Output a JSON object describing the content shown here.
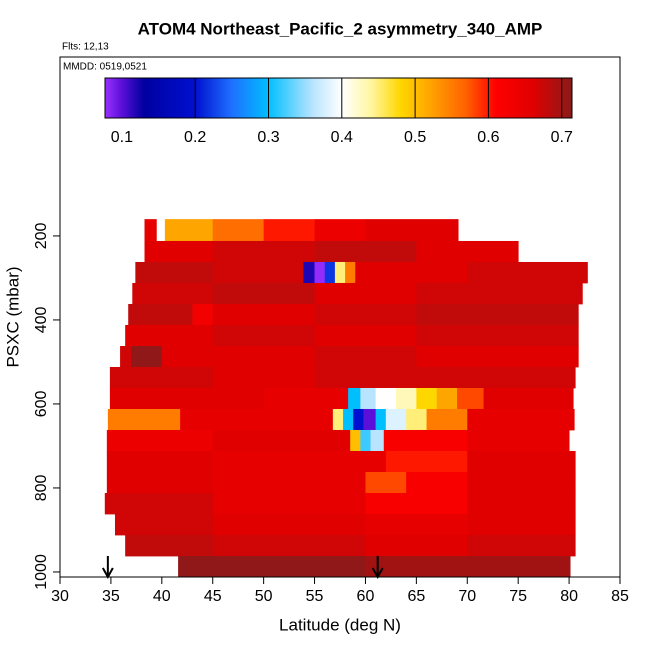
{
  "chart_data": {
    "type": "heatmap",
    "title": "ATOM4 Northeast_Pacific_2 asymmetry_340_AMP",
    "notes": [
      "Flts: 12,13",
      "MMDD: 0519,0521"
    ],
    "xlabel": "Latitude (deg N)",
    "ylabel": "PSXC (mbar)",
    "xlim": [
      30,
      85
    ],
    "xticks": [
      30,
      35,
      40,
      45,
      50,
      55,
      60,
      65,
      70,
      75,
      80,
      85
    ],
    "ylim": [
      1012,
      -226
    ],
    "yticks": [
      200,
      400,
      600,
      800,
      1000
    ],
    "colorbar": {
      "lim": [
        0.077,
        0.714
      ],
      "ticks": [
        0.1,
        0.2,
        0.3,
        0.4,
        0.5,
        0.6,
        0.7
      ],
      "stops": [
        {
          "value": 0.077,
          "color": "#9b30ff"
        },
        {
          "value": 0.1,
          "color": "#5a10d8"
        },
        {
          "value": 0.13,
          "color": "#0000a0"
        },
        {
          "value": 0.2,
          "color": "#0010d0"
        },
        {
          "value": 0.25,
          "color": "#1e70ff"
        },
        {
          "value": 0.3,
          "color": "#00bfff"
        },
        {
          "value": 0.36,
          "color": "#b8e4ff"
        },
        {
          "value": 0.4,
          "color": "#ffffff"
        },
        {
          "value": 0.44,
          "color": "#fff6a0"
        },
        {
          "value": 0.48,
          "color": "#ffd700"
        },
        {
          "value": 0.52,
          "color": "#ffa500"
        },
        {
          "value": 0.57,
          "color": "#ff6000"
        },
        {
          "value": 0.61,
          "color": "#ff0000"
        },
        {
          "value": 0.66,
          "color": "#e00000"
        },
        {
          "value": 0.714,
          "color": "#8b1a1a"
        }
      ]
    },
    "rows": [
      {
        "p": [
          160,
          212
        ],
        "lat": [
          38.3,
          39.5,
          40.3,
          45,
          50,
          55,
          60,
          69.1
        ],
        "values": [
          0.65,
          0.4,
          0.52,
          0.56,
          0.6,
          0.64,
          0.66
        ]
      },
      {
        "p": [
          212,
          262
        ],
        "lat": [
          38.3,
          45,
          55,
          65,
          75
        ],
        "values": [
          0.66,
          0.67,
          0.68,
          0.66
        ]
      },
      {
        "p": [
          262,
          312
        ],
        "lat": [
          37.4,
          45,
          53.9,
          55,
          56,
          57,
          58,
          59,
          70,
          81.8
        ],
        "values": [
          0.68,
          0.67,
          0.12,
          0.08,
          0.22,
          0.45,
          0.55,
          0.66,
          0.67
        ]
      },
      {
        "p": [
          312,
          362
        ],
        "lat": [
          37.1,
          45,
          55,
          65,
          81.3
        ],
        "values": [
          0.67,
          0.68,
          0.66,
          0.67
        ]
      },
      {
        "p": [
          362,
          412
        ],
        "lat": [
          36.7,
          43,
          45,
          55,
          65,
          80.9
        ],
        "values": [
          0.68,
          0.63,
          0.66,
          0.67,
          0.68
        ]
      },
      {
        "p": [
          412,
          462
        ],
        "lat": [
          36.4,
          45,
          55,
          65,
          80.9
        ],
        "values": [
          0.66,
          0.67,
          0.66,
          0.67
        ]
      },
      {
        "p": [
          462,
          512
        ],
        "lat": [
          35.9,
          37,
          40,
          45,
          55,
          65,
          80.9
        ],
        "values": [
          0.67,
          0.71,
          0.66,
          0.66,
          0.67,
          0.66
        ]
      },
      {
        "p": [
          512,
          562
        ],
        "lat": [
          34.9,
          45,
          55,
          65,
          80.6
        ],
        "values": [
          0.67,
          0.66,
          0.67,
          0.67
        ]
      },
      {
        "p": [
          562,
          612
        ],
        "lat": [
          34.9,
          50,
          58.3,
          59.5,
          61,
          63,
          65,
          67,
          69,
          71.6,
          80.4
        ],
        "values": [
          0.66,
          0.65,
          0.3,
          0.36,
          0.4,
          0.43,
          0.48,
          0.52,
          0.58,
          0.66
        ]
      },
      {
        "p": [
          612,
          662
        ],
        "lat": [
          34.7,
          41.8,
          56.8,
          57.8,
          58.8,
          59.8,
          61,
          62,
          64,
          66,
          70,
          80.5
        ],
        "values": [
          0.55,
          0.65,
          0.45,
          0.3,
          0.2,
          0.1,
          0.3,
          0.38,
          0.45,
          0.55,
          0.65
        ]
      },
      {
        "p": [
          662,
          712
        ],
        "lat": [
          34.6,
          45,
          58.5,
          59.5,
          60.5,
          61.8,
          70,
          80
        ],
        "values": [
          0.64,
          0.66,
          0.5,
          0.32,
          0.36,
          0.62,
          0.65
        ]
      },
      {
        "p": [
          712,
          762
        ],
        "lat": [
          34.6,
          45,
          62,
          70,
          80.6
        ],
        "values": [
          0.66,
          0.65,
          0.6,
          0.66
        ]
      },
      {
        "p": [
          762,
          812
        ],
        "lat": [
          34.6,
          45,
          60,
          64,
          70,
          80.6
        ],
        "values": [
          0.66,
          0.65,
          0.58,
          0.62,
          0.66
        ]
      },
      {
        "p": [
          812,
          862
        ],
        "lat": [
          34.4,
          45,
          60,
          70,
          80.6
        ],
        "values": [
          0.67,
          0.65,
          0.62,
          0.66
        ]
      },
      {
        "p": [
          862,
          912
        ],
        "lat": [
          35.4,
          45,
          60,
          70,
          80.6
        ],
        "values": [
          0.67,
          0.66,
          0.65,
          0.66
        ]
      },
      {
        "p": [
          912,
          962
        ],
        "lat": [
          36.4,
          45,
          60,
          70,
          80.6
        ],
        "values": [
          0.68,
          0.67,
          0.66,
          0.67
        ]
      },
      {
        "p": [
          962,
          1012
        ],
        "lat": [
          41.6,
          60,
          80.1
        ],
        "values": [
          0.71,
          0.7
        ]
      }
    ],
    "markers": [
      34.7,
      61.2
    ]
  }
}
